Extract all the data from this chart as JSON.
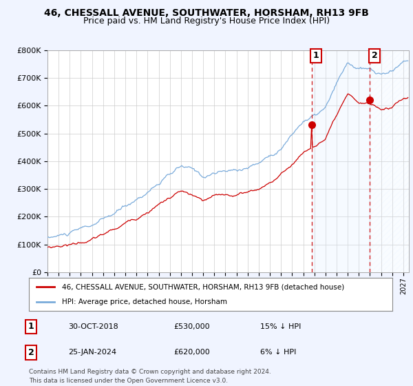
{
  "title": "46, CHESSALL AVENUE, SOUTHWATER, HORSHAM, RH13 9FB",
  "subtitle": "Price paid vs. HM Land Registry's House Price Index (HPI)",
  "ylim": [
    0,
    800000
  ],
  "yticks": [
    0,
    100000,
    200000,
    300000,
    400000,
    500000,
    600000,
    700000,
    800000
  ],
  "ytick_labels": [
    "£0",
    "£100K",
    "£200K",
    "£300K",
    "£400K",
    "£500K",
    "£600K",
    "£700K",
    "£800K"
  ],
  "hpi_color": "#7aabdb",
  "price_color": "#cc0000",
  "sale1_date": "30-OCT-2018",
  "sale1_price": 530000,
  "sale1_pct": "15% ↓ HPI",
  "sale2_date": "25-JAN-2024",
  "sale2_price": 620000,
  "sale2_pct": "6% ↓ HPI",
  "legend1": "46, CHESSALL AVENUE, SOUTHWATER, HORSHAM, RH13 9FB (detached house)",
  "legend2": "HPI: Average price, detached house, Horsham",
  "footnote1": "Contains HM Land Registry data © Crown copyright and database right 2024.",
  "footnote2": "This data is licensed under the Open Government Licence v3.0.",
  "background_color": "#f0f4ff",
  "plot_bg_color": "#ffffff",
  "grid_color": "#cccccc",
  "shade_color": "#ddeeff",
  "hatch_color": "#ddeeff",
  "title_fontsize": 10,
  "subtitle_fontsize": 9
}
